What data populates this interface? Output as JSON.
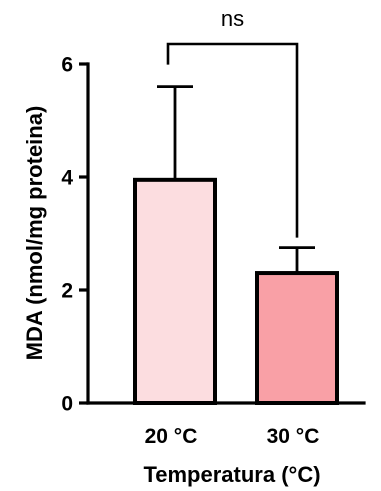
{
  "chart_data": {
    "type": "bar",
    "categories": [
      "20 °C",
      "30 °C"
    ],
    "values": [
      3.95,
      2.3
    ],
    "error_upper": [
      5.6,
      2.75
    ],
    "colors": [
      "#fcdde0",
      "#f9a0a6"
    ],
    "xlabel": "Temperatura (°C)",
    "ylabel": "MDA (nmol/mg proteina)",
    "ylim": [
      0,
      6
    ],
    "yticks": [
      0,
      2,
      4,
      6
    ],
    "significance": {
      "between": [
        0,
        1
      ],
      "label": "ns"
    },
    "grid": false
  }
}
